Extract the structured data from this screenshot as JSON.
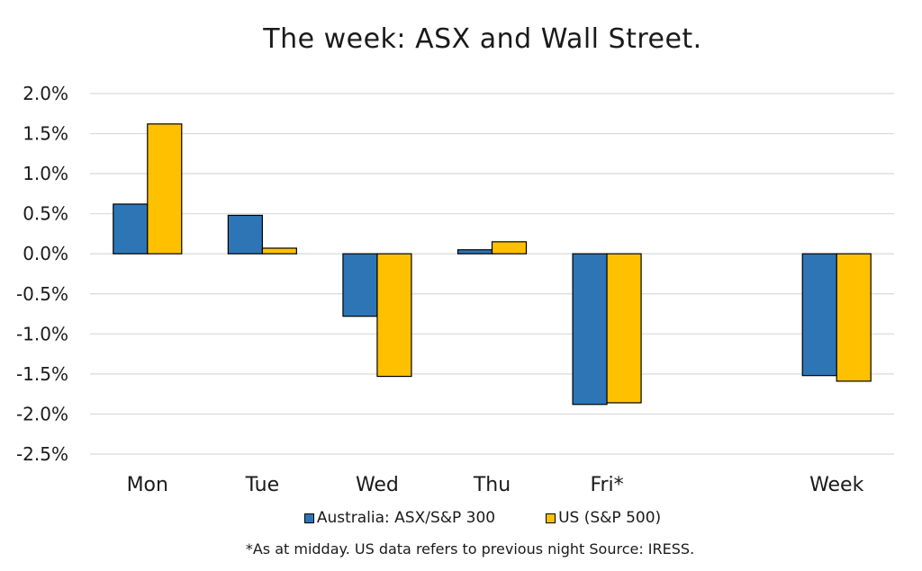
{
  "chart_data": {
    "type": "bar",
    "title": "The week:  ASX and Wall Street.",
    "categories": [
      "Mon",
      "Tue",
      "Wed",
      "Thu",
      "Fri*",
      "",
      "Week"
    ],
    "series": [
      {
        "name": "Australia: ASX/S&P 300",
        "color": "#2E75B6",
        "values": [
          0.62,
          0.48,
          -0.78,
          0.05,
          -1.88,
          null,
          -1.52
        ]
      },
      {
        "name": "US (S&P 500)",
        "color": "#FFC000",
        "values": [
          1.62,
          0.07,
          -1.53,
          0.15,
          -1.86,
          null,
          -1.59
        ]
      }
    ],
    "ylim": [
      -2.5,
      2.0
    ],
    "yticks": [
      2.0,
      1.5,
      1.0,
      0.5,
      0.0,
      -0.5,
      -1.0,
      -1.5,
      -2.0,
      -2.5
    ],
    "ytick_labels": [
      "2.0%",
      "1.5%",
      "1.0%",
      "0.5%",
      "0.0%",
      "-0.5%",
      "-1.0%",
      "-1.5%",
      "-2.0%",
      "-2.5%"
    ],
    "xlabel": "",
    "ylabel": "",
    "grid": true,
    "legend_position": "bottom",
    "footnote": "*As at midday. US data refers to previous night  Source:  IRESS."
  }
}
